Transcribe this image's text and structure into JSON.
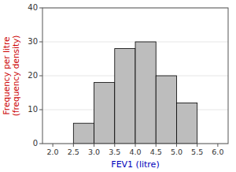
{
  "chart_data": {
    "type": "histogram",
    "xlabel": "FEV1 (litre)",
    "ylabel": "Frequency per litre\n(frequency density)",
    "bins": [
      2.5,
      3.0,
      3.5,
      4.0,
      4.5,
      5.0,
      5.5
    ],
    "values": [
      6,
      18,
      28,
      30,
      20,
      12
    ],
    "color": "#BDBDBD",
    "xlim": [
      1.75,
      6.25
    ],
    "ylim": [
      0,
      40
    ],
    "xticks": [
      {
        "value": 2.0,
        "label": "2.0"
      },
      2.5,
      {
        "value": 3.0,
        "label": "3.0"
      },
      3.5,
      {
        "value": 4.0,
        "label": "4.0"
      },
      4.5,
      {
        "value": 5.0,
        "label": "5.0"
      },
      5.5,
      {
        "value": 6.0,
        "label": "6.0"
      }
    ],
    "yticks": [
      0,
      10,
      20,
      30,
      40
    ]
  }
}
